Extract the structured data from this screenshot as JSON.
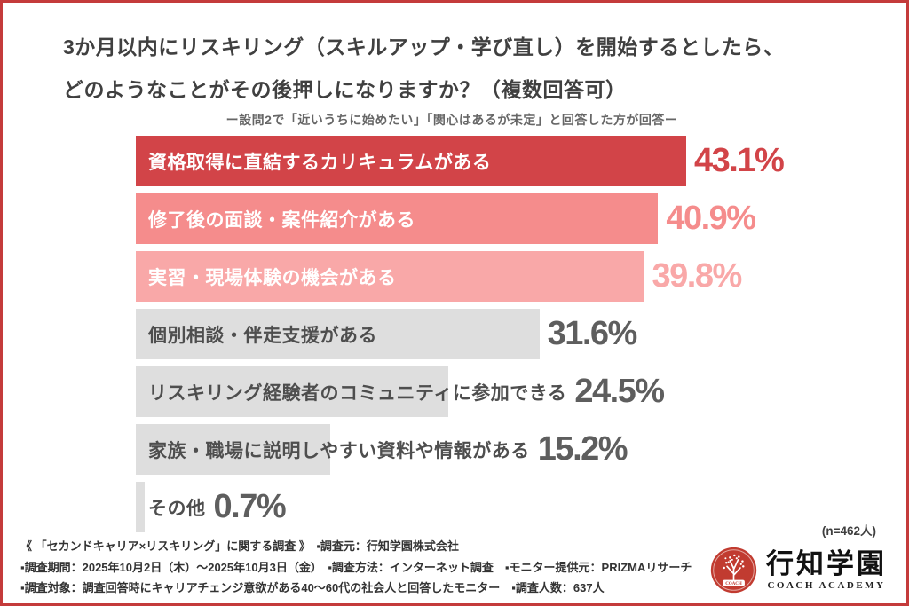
{
  "page": {
    "border_color": "#c43b3b",
    "background": "#ffffff"
  },
  "header": {
    "title_line1": "3か月以内にリスキリング（スキルアップ・学び直し）を開始するとしたら、",
    "title_line2": "どのようなことがその後押しになりますか？（複数回答可）",
    "subtitle": "ー設問2で「近いうちに始めたい」「関心はあるが未定」と回答した方が回答ー"
  },
  "chart_data": {
    "type": "bar",
    "orientation": "horizontal",
    "title": "3か月以内にリスキリング（スキルアップ・学び直し）を開始するとしたら、どのようなことがその後押しになりますか？（複数回答可）",
    "subtitle": "ー設問2で「近いうちに始めたい」「関心はあるが未定」と回答した方が回答ー",
    "unit": "%",
    "categories": [
      "資格取得に直結するカリキュラムがある",
      "修了後の面談・案件紹介がある",
      "実習・現場体験の機会がある",
      "個別相談・伴走支援がある",
      "リスキリング経験者のコミュニティに参加できる",
      "家族・職場に説明しやすい資料や情報がある",
      "その他"
    ],
    "values": [
      43.1,
      40.9,
      39.8,
      31.6,
      24.5,
      15.2,
      0.7
    ],
    "value_labels": [
      "43.1%",
      "40.9%",
      "39.8%",
      "31.6%",
      "24.5%",
      "15.2%",
      "0.7%"
    ],
    "bar_colors": [
      "#d24448",
      "#f58c8c",
      "#f9a8a8",
      "#dedede",
      "#dedede",
      "#dedede",
      "#dedede"
    ],
    "label_colors": [
      "#ffffff",
      "#ffffff",
      "#ffffff",
      "#4e4e4e",
      "#4e4e4e",
      "#4e4e4e",
      "#4e4e4e"
    ],
    "value_colors": [
      "#d24448",
      "#f58c8c",
      "#f9a8a8",
      "#5e5e5e",
      "#5e5e5e",
      "#5e5e5e",
      "#5e5e5e"
    ],
    "xlim": [
      0,
      43.1
    ],
    "grid": false,
    "legend": false,
    "sample_note": "(n=462人)"
  },
  "footer": {
    "lines": [
      "《 「セカンドキャリア×リスキリング」に関する調査 》　▪調査元：行知学園株式会社",
      "▪調査期間：2025年10月2日（木）〜2025年10月3日（金）　▪調査方法：インターネット調査　▪モニター提供元：PRIZMAリサーチ",
      "▪調査対象：調査回答時にキャリアチェンジ意欲がある40〜60代の社会人と回答したモニター　▪調査人数：637人"
    ],
    "logo": {
      "name_jp": "行知学園",
      "name_en": "COACH ACADEMY",
      "badge_text": "COACH",
      "accent_color": "#c13b30"
    }
  }
}
